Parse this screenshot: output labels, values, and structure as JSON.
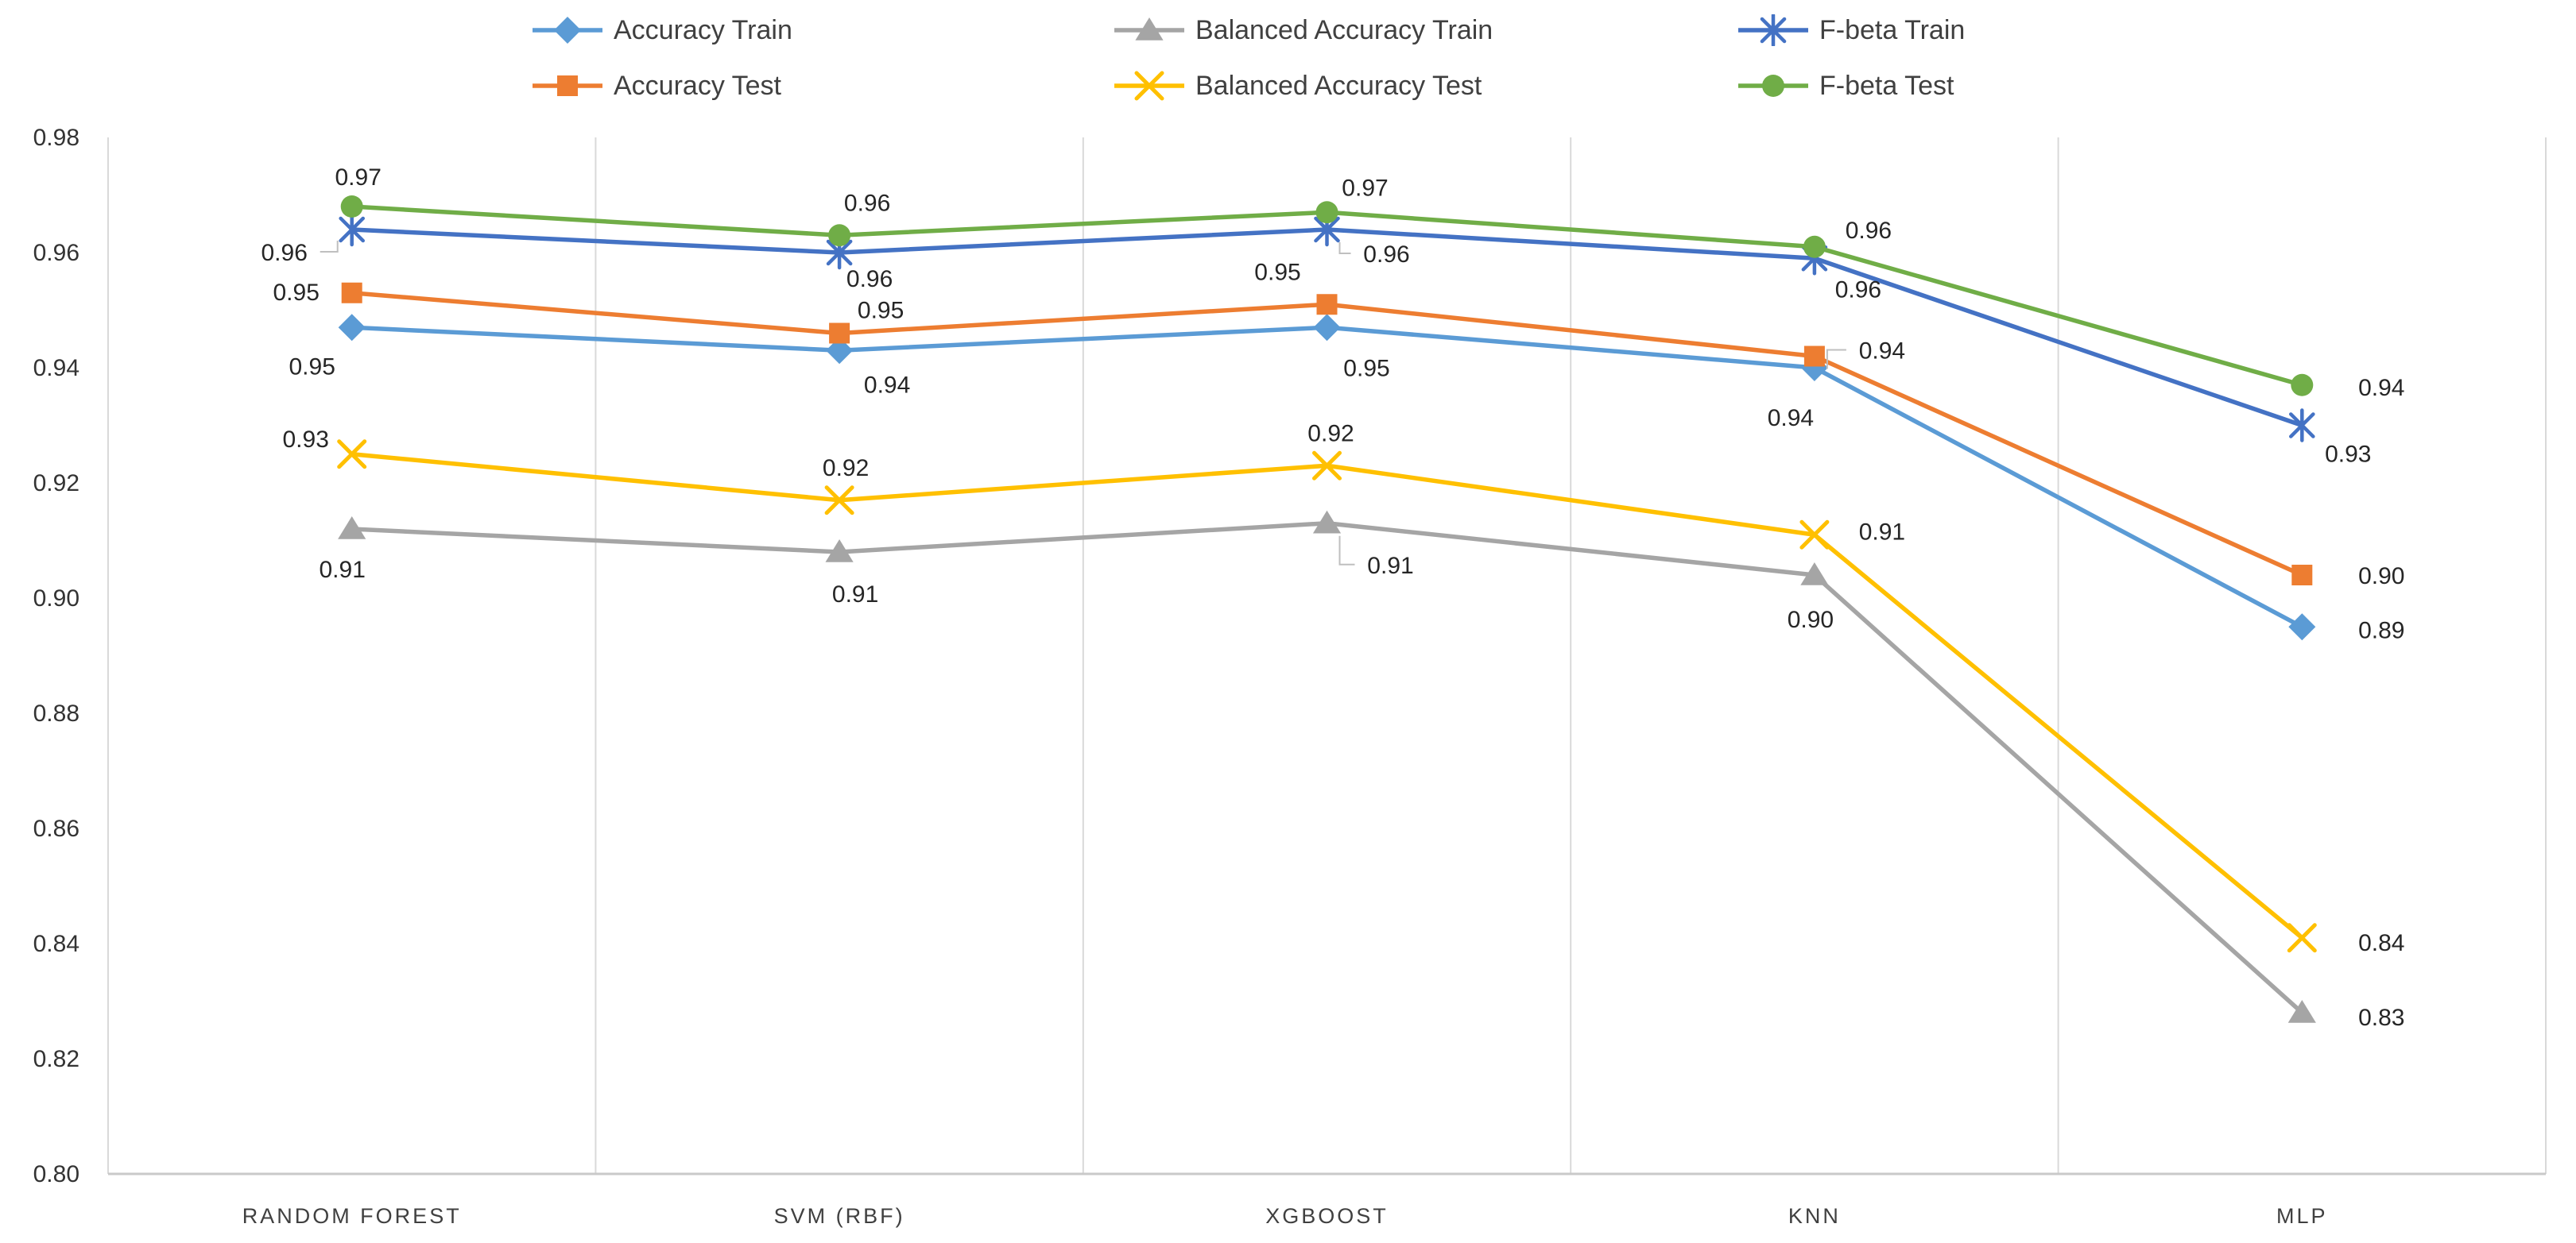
{
  "chart_data": {
    "type": "line",
    "title": "",
    "xlabel": "",
    "ylabel": "",
    "categories": [
      "RANDOM FOREST",
      "SVM (RBF)",
      "XGBOOST",
      "KNN",
      "MLP"
    ],
    "ylim": [
      0.8,
      0.98
    ],
    "ytick_step": 0.02,
    "ytick_labels": [
      "0.98",
      "0.96",
      "0.94",
      "0.92",
      "0.90",
      "0.88",
      "0.86",
      "0.84",
      "0.82",
      "0.80"
    ],
    "grid": "vertical-only",
    "legend_position": "top",
    "series": [
      {
        "name": "Accuracy Train",
        "color": "#5B9BD5",
        "marker": "diamond",
        "values": [
          0.947,
          0.943,
          0.947,
          0.94,
          0.895
        ],
        "labels": [
          "0.95",
          "0.94",
          "0.95",
          "0.94",
          "0.89"
        ],
        "label_offsets": [
          [
            -50,
            48
          ],
          [
            60,
            42
          ],
          [
            50,
            50
          ],
          [
            -30,
            62
          ],
          [
            100,
            3
          ]
        ],
        "leaders": [
          0,
          0,
          0,
          0,
          0
        ]
      },
      {
        "name": "Accuracy Test",
        "color": "#ED7D31",
        "marker": "square",
        "values": [
          0.953,
          0.946,
          0.951,
          0.942,
          0.904
        ],
        "labels": [
          "0.95",
          "0.95",
          "0.95",
          "0.94",
          "0.90"
        ],
        "label_offsets": [
          [
            -70,
            -2
          ],
          [
            52,
            -30
          ],
          [
            -62,
            -42
          ],
          [
            85,
            -8
          ],
          [
            100,
            0
          ]
        ],
        "leaders": [
          0,
          0,
          0,
          1,
          0
        ]
      },
      {
        "name": "Balanced Accuracy Train",
        "color": "#A5A5A5",
        "marker": "triangle",
        "values": [
          0.912,
          0.908,
          0.913,
          0.904,
          0.828
        ],
        "labels": [
          "0.91",
          "0.91",
          "0.91",
          "0.90",
          "0.83"
        ],
        "label_offsets": [
          [
            -12,
            50
          ],
          [
            20,
            52
          ],
          [
            80,
            52
          ],
          [
            -5,
            55
          ],
          [
            100,
            5
          ]
        ],
        "leaders": [
          0,
          0,
          1,
          0,
          0
        ]
      },
      {
        "name": "Balanced Accuracy Test",
        "color": "#FFC000",
        "marker": "x",
        "values": [
          0.925,
          0.917,
          0.923,
          0.911,
          0.841
        ],
        "labels": [
          "0.93",
          "0.92",
          "0.92",
          "0.91",
          "0.84"
        ],
        "label_offsets": [
          [
            -58,
            -20
          ],
          [
            8,
            -42
          ],
          [
            5,
            -42
          ],
          [
            85,
            -5
          ],
          [
            100,
            5
          ]
        ],
        "leaders": [
          0,
          0,
          0,
          0,
          0
        ]
      },
      {
        "name": "F-beta Train",
        "color": "#4472C4",
        "marker": "asterisk",
        "values": [
          0.964,
          0.96,
          0.964,
          0.959,
          0.93
        ],
        "labels": [
          "0.96",
          "0.96",
          "0.96",
          "0.96",
          "0.93"
        ],
        "label_offsets": [
          [
            -85,
            28
          ],
          [
            38,
            32
          ],
          [
            75,
            30
          ],
          [
            55,
            38
          ],
          [
            58,
            35
          ]
        ],
        "leaders": [
          1,
          0,
          1,
          0,
          0
        ]
      },
      {
        "name": "F-beta Test",
        "color": "#70AD47",
        "marker": "circle",
        "values": [
          0.968,
          0.963,
          0.967,
          0.961,
          0.937
        ],
        "labels": [
          "0.97",
          "0.96",
          "0.97",
          "0.96",
          "0.94"
        ],
        "label_offsets": [
          [
            8,
            -38
          ],
          [
            35,
            -42
          ],
          [
            48,
            -32
          ],
          [
            68,
            -22
          ],
          [
            100,
            2
          ]
        ],
        "leaders": [
          0,
          0,
          0,
          0,
          0
        ]
      }
    ],
    "legend_rows": [
      [
        "Accuracy Train",
        "Balanced Accuracy Train",
        "F-beta Train"
      ],
      [
        "Accuracy Test",
        "Balanced Accuracy Test",
        "F-beta Test"
      ]
    ]
  },
  "colors": {
    "gridline": "#D9D9D9",
    "axis_line": "#C9C9C9",
    "tick_label": "#333333",
    "category_label": "#404040",
    "data_label": "#262626",
    "leader_line": "#BFBFBF",
    "background": "#FFFFFF"
  }
}
